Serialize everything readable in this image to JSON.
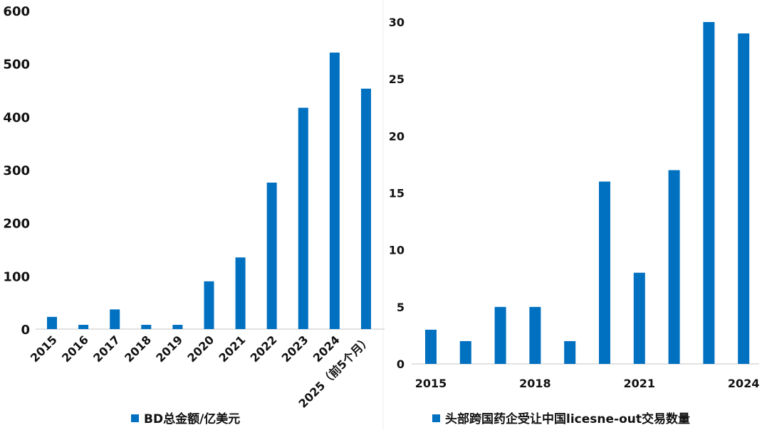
{
  "colors": {
    "bar": "#0070C0",
    "axis": "#d9d9d9"
  },
  "chart_data": [
    {
      "type": "bar",
      "legend": "BD总金额/亿美元",
      "legend_position": "bottom",
      "categories": [
        "2015",
        "2016",
        "2017",
        "2018",
        "2019",
        "2020",
        "2021",
        "2022",
        "2023",
        "2024",
        "2025（前5个月）"
      ],
      "values": [
        23,
        8,
        37,
        8,
        8,
        90,
        135,
        276,
        417,
        521,
        453
      ],
      "ylim": [
        0,
        600
      ],
      "yticks": [
        0,
        100,
        200,
        300,
        400,
        500,
        600
      ],
      "grid": false
    },
    {
      "type": "bar",
      "legend": "头部跨国药企受让中国licesne-out交易数量",
      "legend_position": "bottom",
      "categories": [
        "2015",
        "2016",
        "2017",
        "2018",
        "2019",
        "2020",
        "2021",
        "2022",
        "2023",
        "2024"
      ],
      "xtick_labels": [
        "2015",
        "2018",
        "2021",
        "2024"
      ],
      "values": [
        3,
        2,
        5,
        5,
        2,
        16,
        8,
        17,
        30,
        29
      ],
      "ylim": [
        0,
        30
      ],
      "yticks": [
        0,
        5,
        10,
        15,
        20,
        25,
        30
      ],
      "grid": false
    }
  ]
}
